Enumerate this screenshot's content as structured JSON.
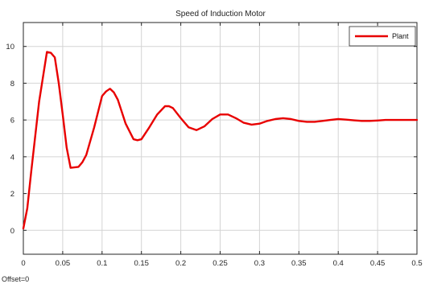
{
  "chart_data": {
    "type": "line",
    "title": "Speed of Induction Motor",
    "xlabel": "",
    "ylabel": "",
    "xlim": [
      0,
      0.5
    ],
    "ylim": [
      -1.3,
      11.3
    ],
    "x_ticks": [
      0,
      0.05,
      0.1,
      0.15,
      0.2,
      0.25,
      0.3,
      0.35,
      0.4,
      0.45,
      0.5
    ],
    "x_tick_labels": [
      "0",
      "0.05",
      "0.1",
      "0.15",
      "0.2",
      "0.25",
      "0.3",
      "0.35",
      "0.4",
      "0.45",
      "0.5"
    ],
    "y_ticks": [
      0,
      2,
      4,
      6,
      8,
      10
    ],
    "y_tick_labels": [
      "0",
      "2",
      "4",
      "6",
      "8",
      "10"
    ],
    "grid": true,
    "legend_position": "top-right",
    "footer": "Offset=0",
    "series": [
      {
        "name": "Plant",
        "color": "#e80000",
        "x": [
          0,
          0.005,
          0.01,
          0.02,
          0.03,
          0.035,
          0.04,
          0.045,
          0.05,
          0.055,
          0.06,
          0.07,
          0.075,
          0.08,
          0.09,
          0.1,
          0.105,
          0.11,
          0.115,
          0.12,
          0.13,
          0.14,
          0.145,
          0.15,
          0.16,
          0.17,
          0.18,
          0.185,
          0.19,
          0.2,
          0.21,
          0.22,
          0.23,
          0.24,
          0.25,
          0.26,
          0.27,
          0.28,
          0.29,
          0.3,
          0.31,
          0.32,
          0.33,
          0.34,
          0.35,
          0.36,
          0.37,
          0.38,
          0.39,
          0.4,
          0.41,
          0.42,
          0.43,
          0.44,
          0.45,
          0.46,
          0.47,
          0.48,
          0.5
        ],
        "y": [
          0.1,
          1.2,
          3.2,
          7.0,
          9.7,
          9.65,
          9.4,
          8.0,
          6.3,
          4.5,
          3.4,
          3.45,
          3.7,
          4.1,
          5.6,
          7.3,
          7.55,
          7.7,
          7.5,
          7.1,
          5.8,
          4.95,
          4.9,
          4.95,
          5.6,
          6.3,
          6.75,
          6.75,
          6.65,
          6.1,
          5.6,
          5.45,
          5.65,
          6.05,
          6.3,
          6.3,
          6.1,
          5.85,
          5.75,
          5.8,
          5.95,
          6.05,
          6.1,
          6.05,
          5.95,
          5.9,
          5.9,
          5.95,
          6.0,
          6.05,
          6.02,
          5.98,
          5.95,
          5.95,
          5.97,
          6.0,
          6.0,
          6.0,
          6.0
        ]
      }
    ]
  }
}
